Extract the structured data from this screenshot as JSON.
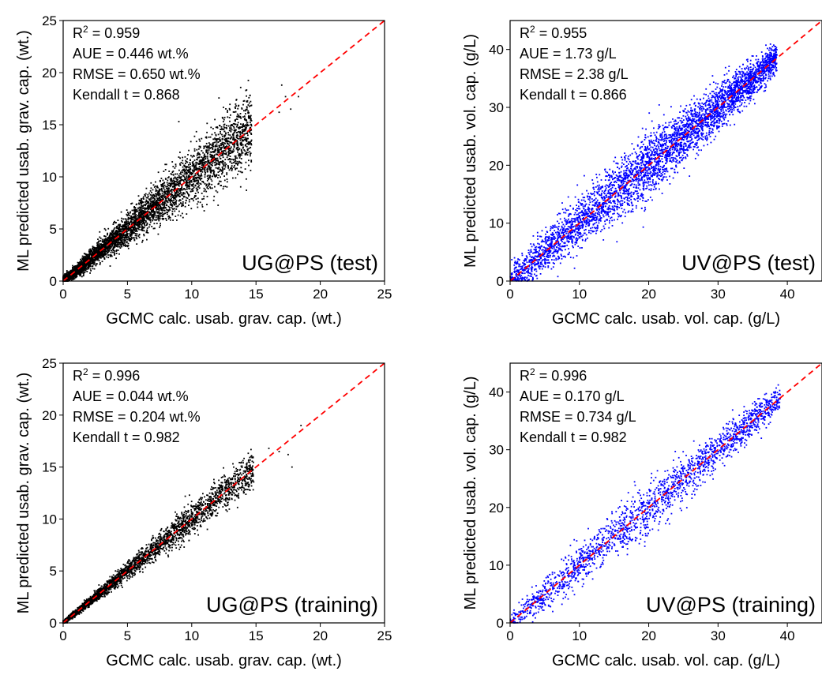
{
  "chart_data": [
    {
      "type": "scatter",
      "panel_label": "UG@PS (test)",
      "xlabel": "GCMC calc. usab. grav. cap. (wt.)",
      "ylabel": "ML predicted usab. grav. cap. (wt.)",
      "xlim": [
        0,
        25
      ],
      "ylim": [
        0,
        25
      ],
      "xticks": [
        0,
        5,
        10,
        15,
        20,
        25
      ],
      "yticks": [
        0,
        5,
        10,
        15,
        20,
        25
      ],
      "stats": {
        "r2_prefix": "R",
        "r2_sup": "2",
        "r2_value": " = 0.959",
        "aue": "AUE = 0.446 wt.%",
        "rmse": "RMSE = 0.650 wt.%",
        "kendall": "Kendall t = 0.868"
      },
      "point_color": "#000000",
      "series": [
        {
          "n_points_shown": "dense cloud",
          "center_line": "y = x",
          "x_range": [
            0,
            18.8
          ],
          "approx_spread": 0.65,
          "outliers": [
            [
              9,
              15.3
            ],
            [
              11.8,
              15.5
            ],
            [
              12.2,
              14.9
            ],
            [
              13.0,
              14.5
            ],
            [
              17.0,
              18.8
            ],
            [
              17.3,
              17.7
            ],
            [
              17.7,
              16.5
            ],
            [
              18.3,
              17.7
            ],
            [
              16.8,
              16.2
            ],
            [
              13.5,
              14.8
            ]
          ]
        }
      ],
      "reference_line": "y = x (red dashed)"
    },
    {
      "type": "scatter",
      "panel_label": "UV@PS (test)",
      "xlabel": "GCMC calc. usab. vol. cap. (g/L)",
      "ylabel": "ML predicted usab. vol. cap. (g/L)",
      "xlim": [
        0,
        45
      ],
      "ylim": [
        0,
        45
      ],
      "xticks": [
        0,
        10,
        20,
        30,
        40
      ],
      "yticks": [
        0,
        10,
        20,
        30,
        40
      ],
      "stats": {
        "r2_prefix": "R",
        "r2_sup": "2",
        "r2_value": " = 0.955",
        "aue": "AUE = 1.73 g/L",
        "rmse": "RMSE = 2.38 g/L",
        "kendall": "Kendall t = 0.866"
      },
      "point_color": "#0000ff",
      "series": [
        {
          "n_points_shown": "dense cloud",
          "center_line": "y = x",
          "x_range": [
            0,
            38.5
          ],
          "approx_spread": 2.4
        }
      ],
      "reference_line": "y = x (red dashed)"
    },
    {
      "type": "scatter",
      "panel_label": "UG@PS (training)",
      "xlabel": "GCMC calc. usab. grav. cap. (wt.)",
      "ylabel": "ML predicted usab. grav. cap. (wt.)",
      "xlim": [
        0,
        25
      ],
      "ylim": [
        0,
        25
      ],
      "xticks": [
        0,
        5,
        10,
        15,
        20,
        25
      ],
      "yticks": [
        0,
        5,
        10,
        15,
        20,
        25
      ],
      "stats": {
        "r2_prefix": "R",
        "r2_sup": "2",
        "r2_value": " = 0.996",
        "aue": "AUE = 0.044 wt.%",
        "rmse": "RMSE = 0.204 wt.%",
        "kendall": "Kendall t = 0.982"
      },
      "point_color": "#000000",
      "series": [
        {
          "n_points_shown": "dense cloud",
          "center_line": "y = x",
          "x_range": [
            0,
            19
          ],
          "approx_spread": 0.35,
          "outliers": [
            [
              16.8,
              16.5
            ],
            [
              17.5,
              16.2
            ],
            [
              17.8,
              15.0
            ],
            [
              18.5,
              19.0
            ],
            [
              16.0,
              16.8
            ]
          ]
        }
      ],
      "reference_line": "y = x (red dashed)"
    },
    {
      "type": "scatter",
      "panel_label": "UV@PS (training)",
      "xlabel": "GCMC calc. usab. vol. cap. (g/L)",
      "ylabel": "ML predicted usab. vol. cap. (g/L)",
      "xlim": [
        0,
        45
      ],
      "ylim": [
        0,
        45
      ],
      "xticks": [
        0,
        10,
        20,
        30,
        40
      ],
      "yticks": [
        0,
        10,
        20,
        30,
        40
      ],
      "stats": {
        "r2_prefix": "R",
        "r2_sup": "2",
        "r2_value": " = 0.996",
        "aue": "AUE = 0.170 g/L",
        "rmse": "RMSE = 0.734 g/L",
        "kendall": "Kendall t = 0.982"
      },
      "point_color": "#0000ff",
      "series": [
        {
          "n_points_shown": "dense cloud",
          "center_line": "y = x",
          "x_range": [
            0,
            39
          ],
          "approx_spread": 2.0
        }
      ],
      "reference_line": "y = x (red dashed)"
    }
  ],
  "colors": {
    "reference_line": "#ff0000",
    "black_points": "#000000",
    "blue_points": "#0000ff"
  }
}
